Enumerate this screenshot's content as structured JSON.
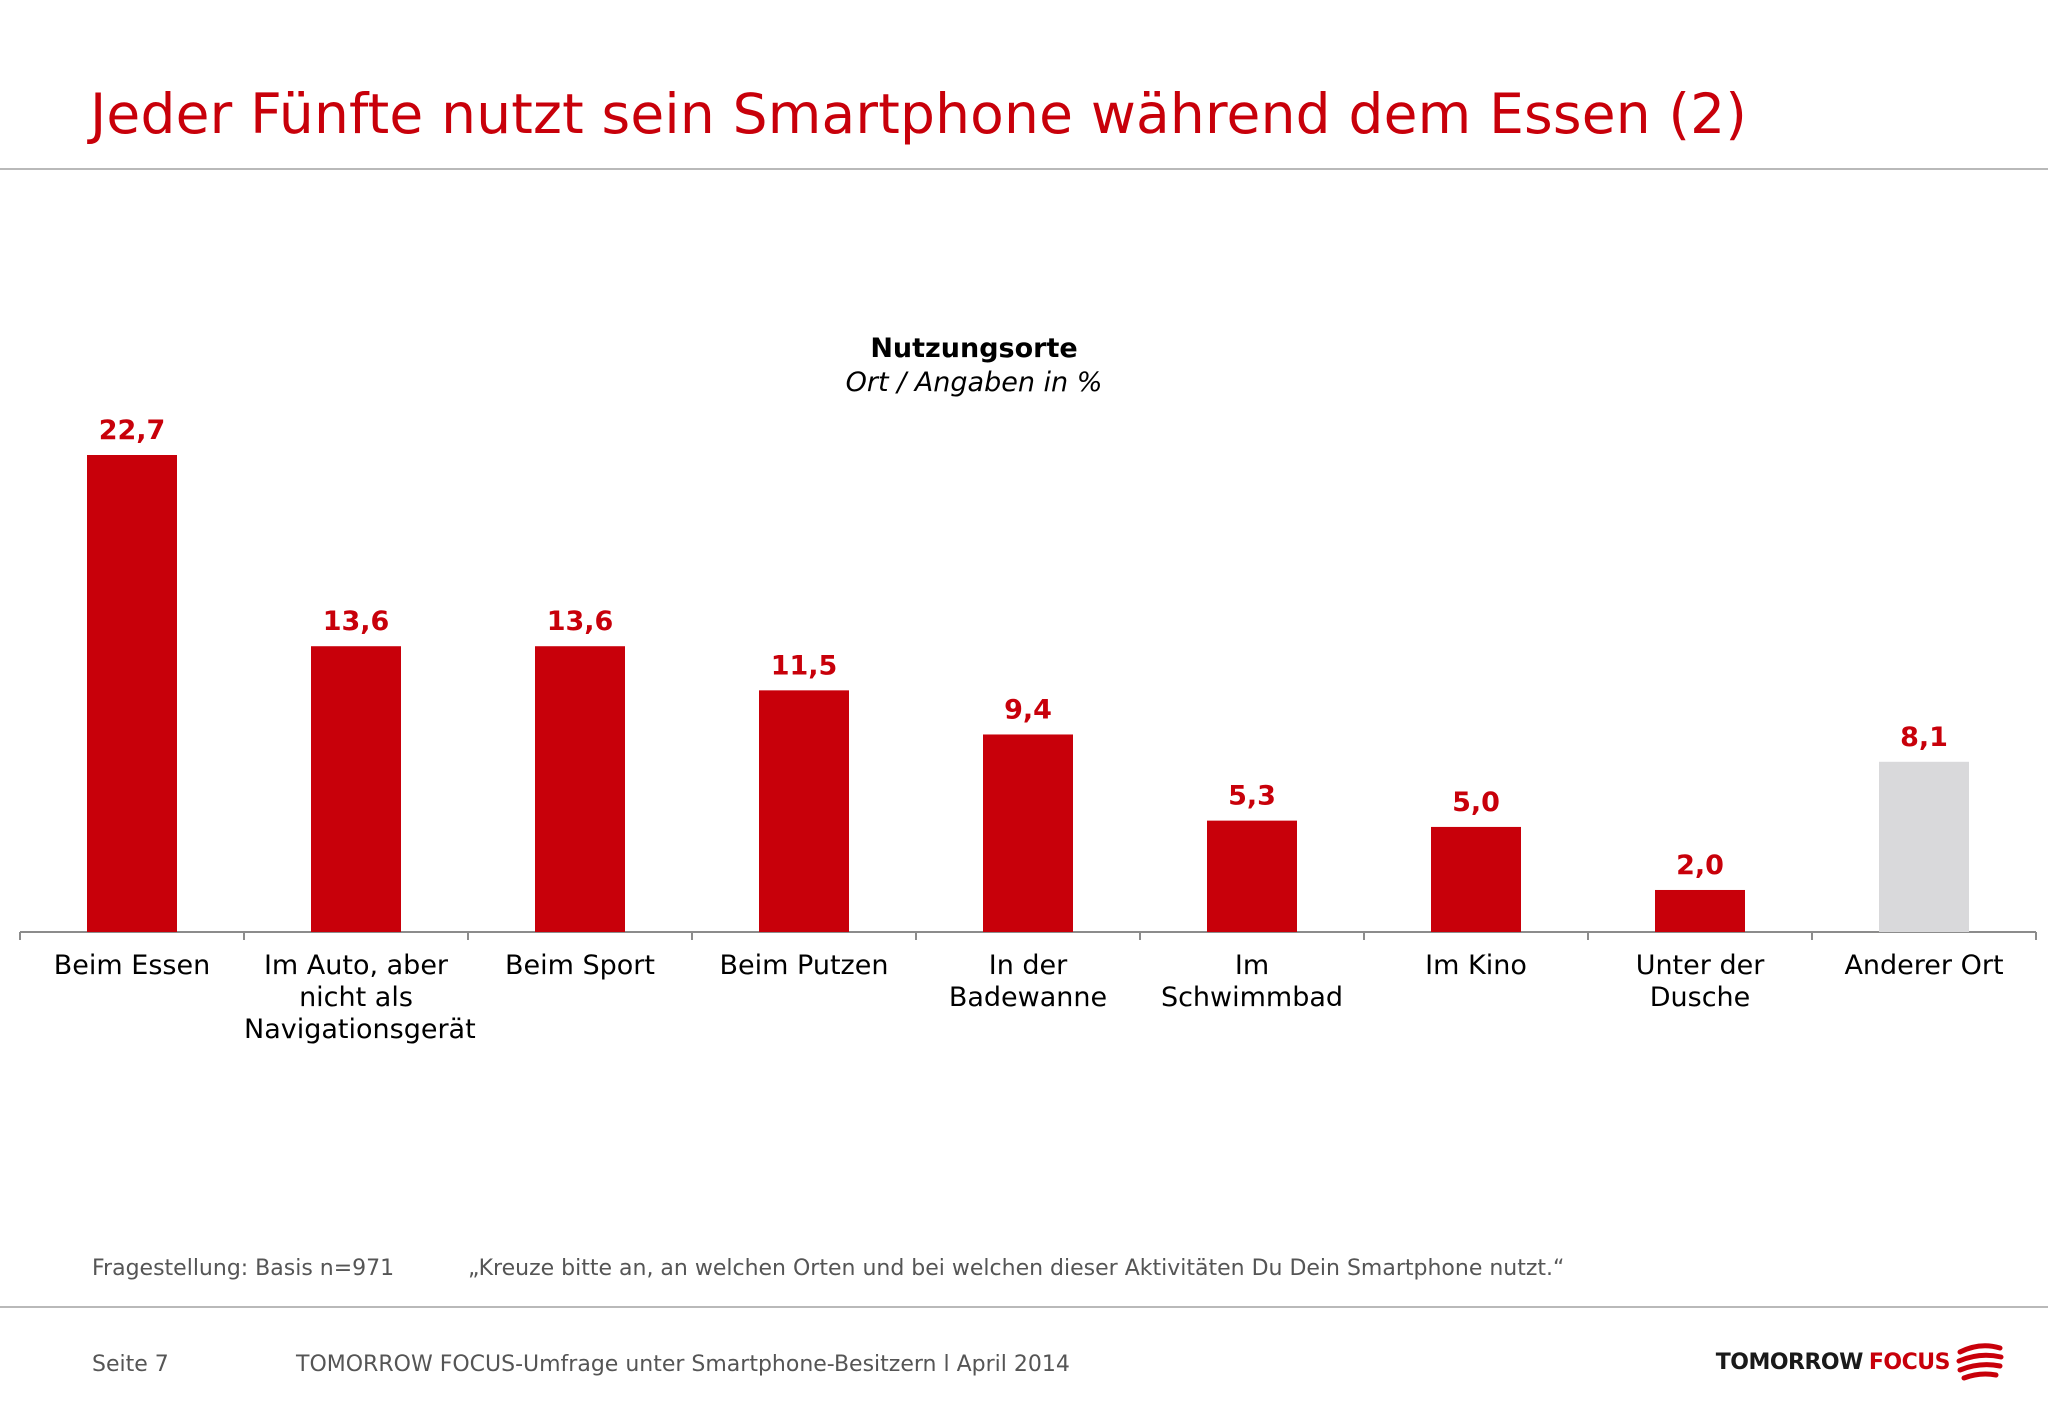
{
  "slide": {
    "title": "Jeder Fünfte nutzt sein Smartphone während dem Essen (2)",
    "footnote_label": "Fragestellung: Basis n=971",
    "footnote_question": "„Kreuze bitte an, an welchen Orten und bei welchen dieser Aktivitäten Du Dein Smartphone nutzt.“",
    "page": "Seite 7",
    "source": "TOMORROW FOCUS-Umfrage unter Smartphone-Besitzern l April 2014",
    "logo_word1": "TOMORROW",
    "logo_word2": "FOCUS"
  },
  "chart_data": {
    "type": "bar",
    "title": "Nutzungsorte",
    "subtitle": "Ort / Angaben in %",
    "categories": [
      "Beim Essen",
      "Im Auto, aber nicht als Navigationsgerät",
      "Beim Sport",
      "Beim Putzen",
      "In der Badewanne",
      "Im Schwimmbad",
      "Im Kino",
      "Unter der Dusche",
      "Anderer Ort"
    ],
    "values": [
      22.7,
      13.6,
      13.6,
      11.5,
      9.4,
      5.3,
      5.0,
      2.0,
      8.1
    ],
    "value_labels": [
      "22,7",
      "13,6",
      "13,6",
      "11,5",
      "9,4",
      "5,3",
      "5,0",
      "2,0",
      "8,1"
    ],
    "colors": [
      "#c8000a",
      "#c8000a",
      "#c8000a",
      "#c8000a",
      "#c8000a",
      "#c8000a",
      "#c8000a",
      "#c8000a",
      "#d9d9db"
    ],
    "label_color": "#c8000a",
    "ylim": [
      0,
      23
    ],
    "grid": false,
    "legend": "none"
  }
}
